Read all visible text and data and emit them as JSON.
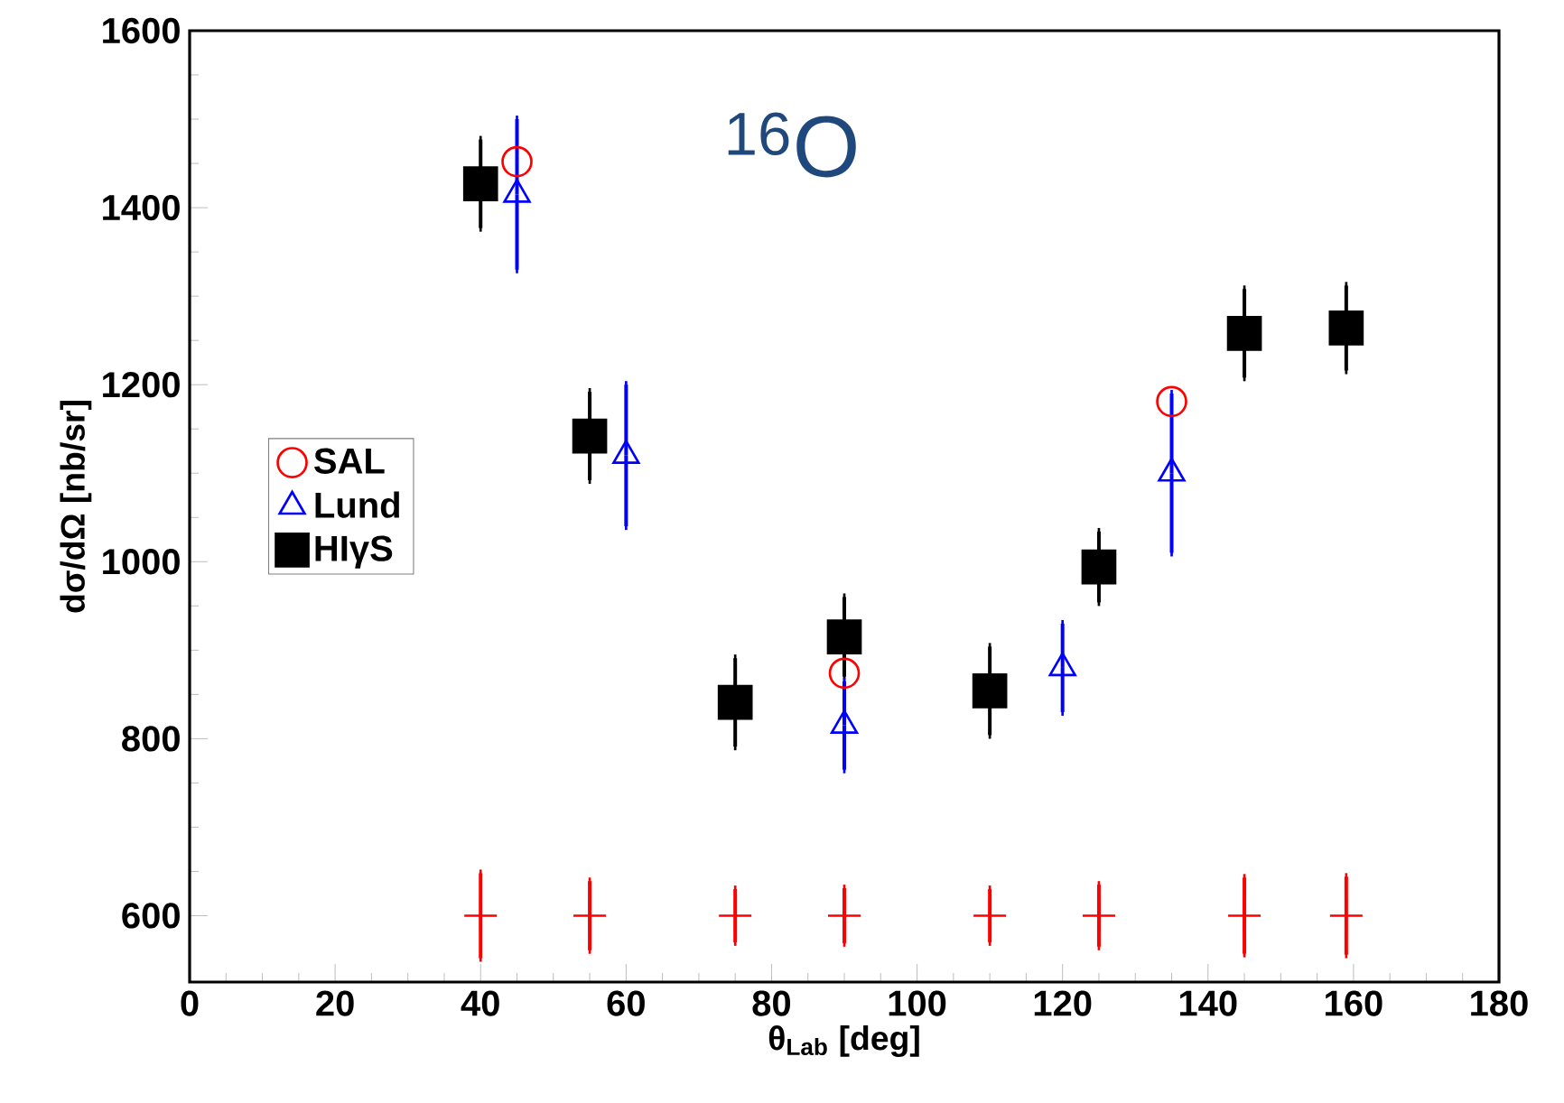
{
  "chart_data": {
    "type": "scatter",
    "xlabel": "θ$_{Lab}$ [deg]",
    "ylabel": "dσ/dΩ [nb/sr]",
    "annotations": [
      "$^{16}$O"
    ],
    "xlim": [
      0,
      180
    ],
    "xticks": [
      0,
      20,
      40,
      60,
      80,
      100,
      120,
      140,
      160,
      180
    ],
    "ylim": [
      525,
      1600
    ],
    "yticks": [
      600,
      800,
      1000,
      1200,
      1400,
      1600
    ],
    "grid": false,
    "legend": "left",
    "series": [
      {
        "name": "SAL",
        "color": "#ff0000",
        "marker": "circle",
        "x": [
          45,
          90,
          135
        ],
        "values": [
          1452,
          874,
          1181
        ]
      },
      {
        "name": "Lund",
        "color": "#0000ff",
        "marker": "triangle",
        "x": [
          45,
          60,
          90,
          120,
          135
        ],
        "values": [
          1415,
          1120,
          815,
          880,
          1100
        ],
        "errors": [
          85,
          80,
          50,
          50,
          90
        ]
      },
      {
        "name": "HIγS",
        "color": "#000000",
        "marker": "square",
        "x": [
          40,
          55,
          75,
          90,
          110,
          125,
          145,
          159
        ],
        "values": [
          1427,
          1142,
          841,
          915,
          854,
          994,
          1258,
          1264
        ],
        "errors": [
          50,
          50,
          50,
          45,
          50,
          40,
          50,
          48
        ]
      },
      {
        "color": "#ff0000",
        "marker": "cross",
        "x": [
          40,
          55,
          75,
          90,
          110,
          125,
          145,
          159
        ],
        "values": [
          600,
          600,
          600,
          600,
          600,
          600,
          600,
          600
        ],
        "errors": [
          48,
          39,
          30,
          31,
          30,
          35,
          43,
          44
        ]
      }
    ]
  }
}
